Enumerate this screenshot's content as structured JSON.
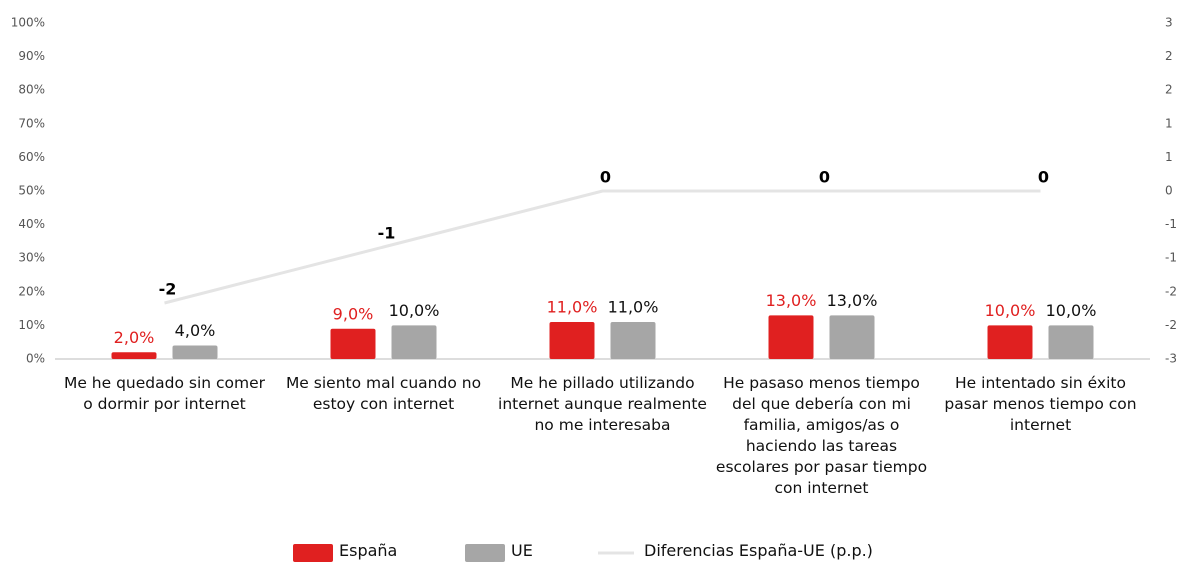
{
  "chart_data": {
    "type": "bar",
    "categories": [
      "Me he quedado sin comer o dormir por internet",
      "Me siento mal cuando no estoy con internet",
      "Me he pillado utilizando internet aunque realmente no me interesaba",
      "He pasaso menos tiempo del que debería con mi familia, amigos/as o haciendo las tareas escolares por pasar tiempo con internet",
      "He intentado sin éxito pasar menos tiempo con internet"
    ],
    "series": [
      {
        "name": "España",
        "type": "bar",
        "color": "#e02020",
        "values": [
          2,
          9,
          11,
          13,
          10
        ],
        "value_labels": [
          "2,0%",
          "9,0%",
          "11,0%",
          "13,0%",
          "10,0%"
        ]
      },
      {
        "name": "UE",
        "type": "bar",
        "color": "#a6a6a6",
        "values": [
          4,
          10,
          11,
          13,
          10
        ],
        "value_labels": [
          "4,0%",
          "10,0%",
          "11,0%",
          "13,0%",
          "10,0%"
        ]
      },
      {
        "name": "Diferencias España-UE (p.p.)",
        "type": "line",
        "axis": "y2",
        "color": "#e4e4e4",
        "values": [
          -2,
          -1,
          0,
          0,
          0
        ]
      }
    ],
    "ylim": [
      0,
      100
    ],
    "yticks": [
      {
        "value": 0,
        "label": "0%"
      },
      {
        "value": 10,
        "label": "10%"
      },
      {
        "value": 20,
        "label": "20%"
      },
      {
        "value": 30,
        "label": "30%"
      },
      {
        "value": 40,
        "label": "40%"
      },
      {
        "value": 50,
        "label": "50%"
      },
      {
        "value": 60,
        "label": "60%"
      },
      {
        "value": 70,
        "label": "70%"
      },
      {
        "value": 80,
        "label": "80%"
      },
      {
        "value": 90,
        "label": "90%"
      },
      {
        "value": 100,
        "label": "100%"
      }
    ],
    "y2lim": [
      -3,
      3
    ],
    "y2ticks": [
      -3,
      {
        "value": -2.4,
        "label": "-2"
      },
      {
        "value": -1.8,
        "label": "-2"
      },
      {
        "value": -1.2,
        "label": "-1"
      },
      {
        "value": -0.6,
        "label": "-1"
      },
      0,
      {
        "value": 0.6,
        "label": "1"
      },
      {
        "value": 1.2,
        "label": "1"
      },
      {
        "value": 1.8,
        "label": "2"
      },
      {
        "value": 2.4,
        "label": "2"
      },
      3
    ],
    "legend": "bottom",
    "grid": false
  }
}
